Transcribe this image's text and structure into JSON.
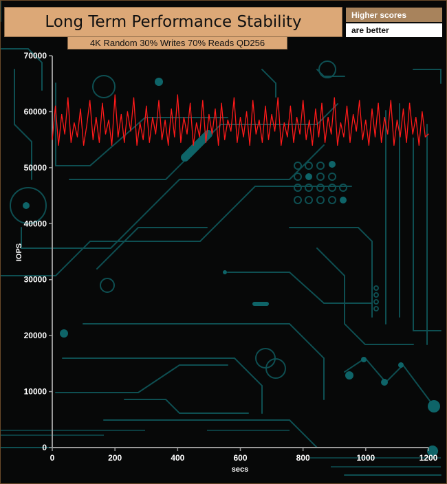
{
  "header": {
    "title": "Long Term Performance Stability",
    "subtitle": "4K Random 30% Writes 70% Reads QD256"
  },
  "badge": {
    "line1": "Higher scores",
    "line2": "are better"
  },
  "colors": {
    "series": "#ff1a1a",
    "title_bg": "#dca877",
    "badge_top_bg": "#a8835c",
    "circuit": "#0e4f52",
    "axis": "#9a9a9a"
  },
  "chart_data": {
    "type": "line",
    "xlabel": "secs",
    "ylabel": "IOPS",
    "xlim": [
      0,
      1200
    ],
    "ylim": [
      0,
      70000
    ],
    "xticks": [
      0,
      200,
      400,
      600,
      800,
      1000,
      1200
    ],
    "yticks": [
      0,
      10000,
      20000,
      30000,
      40000,
      50000,
      60000,
      70000
    ],
    "grid": false,
    "series": [
      {
        "color": "#ff1a1a",
        "x": [
          0,
          10,
          20,
          30,
          40,
          50,
          60,
          70,
          80,
          90,
          100,
          110,
          120,
          130,
          140,
          150,
          160,
          170,
          180,
          190,
          200,
          210,
          220,
          230,
          240,
          250,
          260,
          270,
          280,
          290,
          300,
          310,
          320,
          330,
          340,
          350,
          360,
          370,
          380,
          390,
          400,
          410,
          420,
          430,
          440,
          450,
          460,
          470,
          480,
          490,
          500,
          510,
          520,
          530,
          540,
          550,
          560,
          570,
          580,
          590,
          600,
          610,
          620,
          630,
          640,
          650,
          660,
          670,
          680,
          690,
          700,
          710,
          720,
          730,
          740,
          750,
          760,
          770,
          780,
          790,
          800,
          810,
          820,
          830,
          840,
          850,
          860,
          870,
          880,
          890,
          900,
          910,
          920,
          930,
          940,
          950,
          960,
          970,
          980,
          990,
          1000,
          1010,
          1020,
          1030,
          1040,
          1050,
          1060,
          1070,
          1080,
          1090,
          1100,
          1110,
          1120,
          1130,
          1140,
          1150,
          1160,
          1170,
          1180,
          1190,
          1200
        ],
        "values": [
          55000,
          61000,
          54000,
          59500,
          56000,
          62500,
          54500,
          58000,
          55500,
          60500,
          54000,
          57500,
          62000,
          55000,
          59000,
          54500,
          61500,
          56000,
          58500,
          54000,
          63000,
          55500,
          59500,
          54500,
          60000,
          56500,
          62500,
          54000,
          58000,
          55000,
          61000,
          54500,
          59000,
          56000,
          62000,
          55000,
          58500,
          54000,
          60500,
          55500,
          63000,
          54500,
          59000,
          56000,
          61500,
          54000,
          58000,
          55500,
          62000,
          54500,
          59500,
          56000,
          60500,
          54000,
          61500,
          55000,
          58500,
          56500,
          62500,
          54500,
          59000,
          55500,
          60000,
          54000,
          62000,
          56000,
          58500,
          54500,
          61000,
          55000,
          59500,
          56500,
          62500,
          54000,
          58000,
          55500,
          61000,
          54500,
          59000,
          56000,
          62000,
          55000,
          58500,
          54000,
          60500,
          55500,
          61500,
          54500,
          59000,
          56000,
          62500,
          54000,
          58000,
          55500,
          61000,
          54500,
          59500,
          56500,
          62000,
          55000,
          58500,
          54000,
          60500,
          55500,
          61500,
          54500,
          59000,
          56000,
          62000,
          54000,
          58500,
          55500,
          60500,
          54500,
          61500,
          56000,
          59000,
          54000,
          60000,
          55500,
          56000
        ]
      }
    ]
  }
}
